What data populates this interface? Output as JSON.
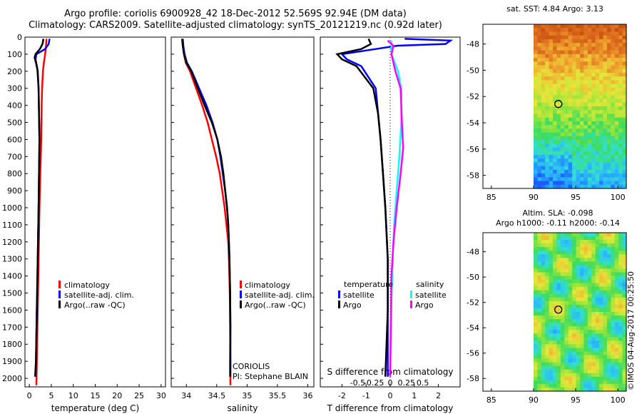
{
  "header": {
    "line1": "Argo profile: coriolis 6900928_42 18-Dec-2012 52.569S 92.94E (DM data)",
    "line2": "Climatology: CARS2009. Satellite-adjusted climatology: synTS_20121219.nc (0.92d later)"
  },
  "colors": {
    "clim": "#ff0000",
    "sat": "#0000ff",
    "argo": "#000000",
    "sat_sal": "#00ffff",
    "argo_sal": "#ff00ff"
  },
  "chart_data": [
    {
      "id": "temperature",
      "type": "line",
      "xlabel": "temperature (deg C)",
      "ylabel": "",
      "xlim": [
        -1,
        31
      ],
      "ylim": [
        2050,
        0
      ],
      "xticks": [
        0,
        5,
        10,
        15,
        20,
        25,
        30
      ],
      "yticks": [
        0,
        100,
        200,
        300,
        400,
        500,
        600,
        700,
        800,
        900,
        1000,
        1100,
        1200,
        1300,
        1400,
        1500,
        1600,
        1700,
        1800,
        1900,
        2000
      ],
      "legend": [
        "climatology",
        "satellite-adj. clim.",
        "Argo(..raw -QC)"
      ],
      "series": [
        {
          "name": "climatology",
          "color": "clim",
          "points": [
            [
              3.9,
              10
            ],
            [
              3.8,
              50
            ],
            [
              3.6,
              100
            ],
            [
              3.3,
              150
            ],
            [
              3.1,
              200
            ],
            [
              2.9,
              300
            ],
            [
              2.8,
              400
            ],
            [
              2.7,
              600
            ],
            [
              2.5,
              800
            ],
            [
              2.3,
              1000
            ],
            [
              2.1,
              1300
            ],
            [
              1.9,
              1600
            ],
            [
              1.7,
              1900
            ],
            [
              1.6,
              2040
            ]
          ]
        },
        {
          "name": "satellite-adj. clim.",
          "color": "sat",
          "points": [
            [
              4.6,
              10
            ],
            [
              4.4,
              40
            ],
            [
              3.6,
              70
            ],
            [
              1.6,
              100
            ],
            [
              1.4,
              130
            ],
            [
              1.8,
              180
            ],
            [
              2.1,
              300
            ],
            [
              2.2,
              450
            ],
            [
              2.3,
              600
            ],
            [
              2.2,
              800
            ],
            [
              2.1,
              1000
            ],
            [
              1.9,
              1300
            ],
            [
              1.7,
              1600
            ],
            [
              1.5,
              1900
            ],
            [
              1.4,
              1990
            ]
          ]
        },
        {
          "name": "Argo(..raw -QC)",
          "color": "argo",
          "points": [
            [
              3.2,
              10
            ],
            [
              3.0,
              40
            ],
            [
              2.4,
              70
            ],
            [
              1.4,
              100
            ],
            [
              1.2,
              120
            ],
            [
              1.5,
              150
            ],
            [
              1.9,
              200
            ],
            [
              2.1,
              300
            ],
            [
              2.2,
              450
            ],
            [
              2.3,
              600
            ],
            [
              2.2,
              800
            ],
            [
              2.1,
              1000
            ],
            [
              1.9,
              1300
            ],
            [
              1.7,
              1600
            ],
            [
              1.5,
              1900
            ],
            [
              1.3,
              1990
            ]
          ]
        }
      ]
    },
    {
      "id": "salinity",
      "type": "line",
      "xlabel": "salinity",
      "xlim": [
        33.75,
        36.1
      ],
      "ylim": [
        2050,
        0
      ],
      "xticks": [
        34,
        34.5,
        35,
        35.5,
        36
      ],
      "xticklabels": [
        "34",
        "34.5",
        "35",
        "35.5",
        "36"
      ],
      "legend": [
        "climatology",
        "satellite-adj. clim.",
        "Argo(..raw -QC)"
      ],
      "annotation": [
        "CORIOLIS",
        "PI: Stephane BLAIN"
      ],
      "series": [
        {
          "name": "climatology",
          "color": "clim",
          "points": [
            [
              33.93,
              10
            ],
            [
              33.94,
              50
            ],
            [
              33.96,
              100
            ],
            [
              33.99,
              150
            ],
            [
              34.06,
              200
            ],
            [
              34.16,
              300
            ],
            [
              34.26,
              400
            ],
            [
              34.35,
              500
            ],
            [
              34.42,
              600
            ],
            [
              34.49,
              700
            ],
            [
              34.55,
              800
            ],
            [
              34.59,
              900
            ],
            [
              34.63,
              1000
            ],
            [
              34.66,
              1100
            ],
            [
              34.69,
              1200
            ],
            [
              34.7,
              1300
            ],
            [
              34.715,
              1500
            ],
            [
              34.72,
              1700
            ],
            [
              34.725,
              1900
            ],
            [
              34.725,
              2040
            ]
          ]
        },
        {
          "name": "satellite-adj. clim.",
          "color": "sat",
          "points": [
            [
              33.94,
              10
            ],
            [
              33.95,
              50
            ],
            [
              33.97,
              100
            ],
            [
              34.01,
              150
            ],
            [
              34.09,
              200
            ],
            [
              34.21,
              300
            ],
            [
              34.33,
              400
            ],
            [
              34.43,
              500
            ],
            [
              34.51,
              600
            ],
            [
              34.56,
              700
            ],
            [
              34.6,
              800
            ],
            [
              34.64,
              900
            ],
            [
              34.67,
              1000
            ],
            [
              34.69,
              1100
            ],
            [
              34.7,
              1200
            ],
            [
              34.71,
              1300
            ],
            [
              34.72,
              1500
            ],
            [
              34.725,
              1700
            ],
            [
              34.725,
              1900
            ],
            [
              34.725,
              1990
            ]
          ]
        },
        {
          "name": "Argo(..raw -QC)",
          "color": "argo",
          "points": [
            [
              33.93,
              10
            ],
            [
              33.94,
              50
            ],
            [
              33.96,
              100
            ],
            [
              34.0,
              150
            ],
            [
              34.08,
              200
            ],
            [
              34.19,
              300
            ],
            [
              34.3,
              400
            ],
            [
              34.42,
              500
            ],
            [
              34.51,
              600
            ],
            [
              34.57,
              700
            ],
            [
              34.61,
              800
            ],
            [
              34.64,
              900
            ],
            [
              34.67,
              1000
            ],
            [
              34.69,
              1100
            ],
            [
              34.7,
              1200
            ],
            [
              34.71,
              1300
            ],
            [
              34.72,
              1500
            ],
            [
              34.725,
              1700
            ],
            [
              34.72,
              1900
            ],
            [
              34.72,
              1990
            ]
          ]
        }
      ]
    },
    {
      "id": "difference",
      "type": "line",
      "xlabel": "T difference from climatology",
      "x2label": "S difference from climatology",
      "xlim": [
        -2.9,
        2.9
      ],
      "ylim": [
        2050,
        0
      ],
      "xticks": [
        -2,
        -1,
        0,
        1,
        2
      ],
      "x2ticks": [
        -0.5,
        -0.25,
        0,
        0.25,
        0.5
      ],
      "x2ticklabels": [
        "-0.5",
        "-0.25",
        "0",
        "0.25",
        "0.5"
      ],
      "legend_titles": [
        "temperature",
        "salinity"
      ],
      "legend": [
        "satellite",
        "Argo",
        "satellite",
        "Argo"
      ],
      "series": [
        {
          "name": "T satellite",
          "color": "sat",
          "points": [
            [
              0.6,
              10
            ],
            [
              2.5,
              20
            ],
            [
              2.3,
              40
            ],
            [
              0.3,
              50
            ],
            [
              -0.6,
              70
            ],
            [
              -2.0,
              100
            ],
            [
              -1.8,
              130
            ],
            [
              -1.2,
              170
            ],
            [
              -0.6,
              300
            ],
            [
              -0.5,
              450
            ],
            [
              -0.4,
              600
            ],
            [
              -0.3,
              800
            ],
            [
              -0.2,
              1000
            ],
            [
              -0.1,
              1300
            ],
            [
              -0.1,
              1600
            ],
            [
              -0.1,
              1990
            ]
          ]
        },
        {
          "name": "T Argo",
          "color": "argo",
          "points": [
            [
              -0.9,
              10
            ],
            [
              -0.8,
              40
            ],
            [
              -1.2,
              70
            ],
            [
              -2.2,
              100
            ],
            [
              -2.0,
              130
            ],
            [
              -1.4,
              170
            ],
            [
              -0.7,
              300
            ],
            [
              -0.5,
              450
            ],
            [
              -0.4,
              600
            ],
            [
              -0.3,
              800
            ],
            [
              -0.2,
              1000
            ],
            [
              -0.1,
              1300
            ],
            [
              -0.1,
              1600
            ],
            [
              -0.2,
              1990
            ]
          ]
        },
        {
          "name": "S satellite",
          "color": "sat_sal",
          "points": [
            [
              0.02,
              20
            ],
            [
              0.02,
              100
            ],
            [
              0.12,
              200
            ],
            [
              0.17,
              300
            ],
            [
              0.17,
              500
            ],
            [
              0.14,
              700
            ],
            [
              0.1,
              900
            ],
            [
              0.06,
              1100
            ],
            [
              0.03,
              1400
            ],
            [
              0.01,
              1700
            ],
            [
              0.0,
              1990
            ]
          ]
        },
        {
          "name": "S Argo",
          "color": "argo_sal",
          "points": [
            [
              -0.04,
              20
            ],
            [
              0.05,
              50
            ],
            [
              0.02,
              100
            ],
            [
              0.08,
              200
            ],
            [
              0.16,
              300
            ],
            [
              0.18,
              500
            ],
            [
              0.2,
              650
            ],
            [
              0.16,
              800
            ],
            [
              0.1,
              1000
            ],
            [
              0.05,
              1200
            ],
            [
              0.02,
              1400
            ],
            [
              0.0,
              1990
            ]
          ]
        }
      ]
    },
    {
      "id": "sst_map",
      "type": "heatmap",
      "title": "sat. SST: 4.84  Argo: 3.13",
      "xlim": [
        84,
        101
      ],
      "ylim": [
        -59,
        -46.5
      ],
      "xticks": [
        85,
        90,
        95,
        100
      ],
      "yticks": [
        -48,
        -50,
        -52,
        -54,
        -56,
        -58
      ],
      "data_lon_range": [
        90,
        101
      ],
      "argo_position": {
        "lon": 92.94,
        "lat": -52.569
      }
    },
    {
      "id": "sla_map",
      "type": "heatmap",
      "title1": "Altim. SLA: -0.098",
      "title2": "Argo h1000: -0.11 h2000: -0.14",
      "xlim": [
        84,
        101
      ],
      "ylim": [
        -59,
        -46.5
      ],
      "xticks": [
        85,
        90,
        95,
        100
      ],
      "yticks": [
        -48,
        -50,
        -52,
        -54,
        -56,
        -58
      ],
      "data_lon_range": [
        90,
        101
      ],
      "argo_position": {
        "lon": 92.94,
        "lat": -52.569
      },
      "credit": "©IMOS 04-Aug-2017 00:25:50"
    }
  ]
}
